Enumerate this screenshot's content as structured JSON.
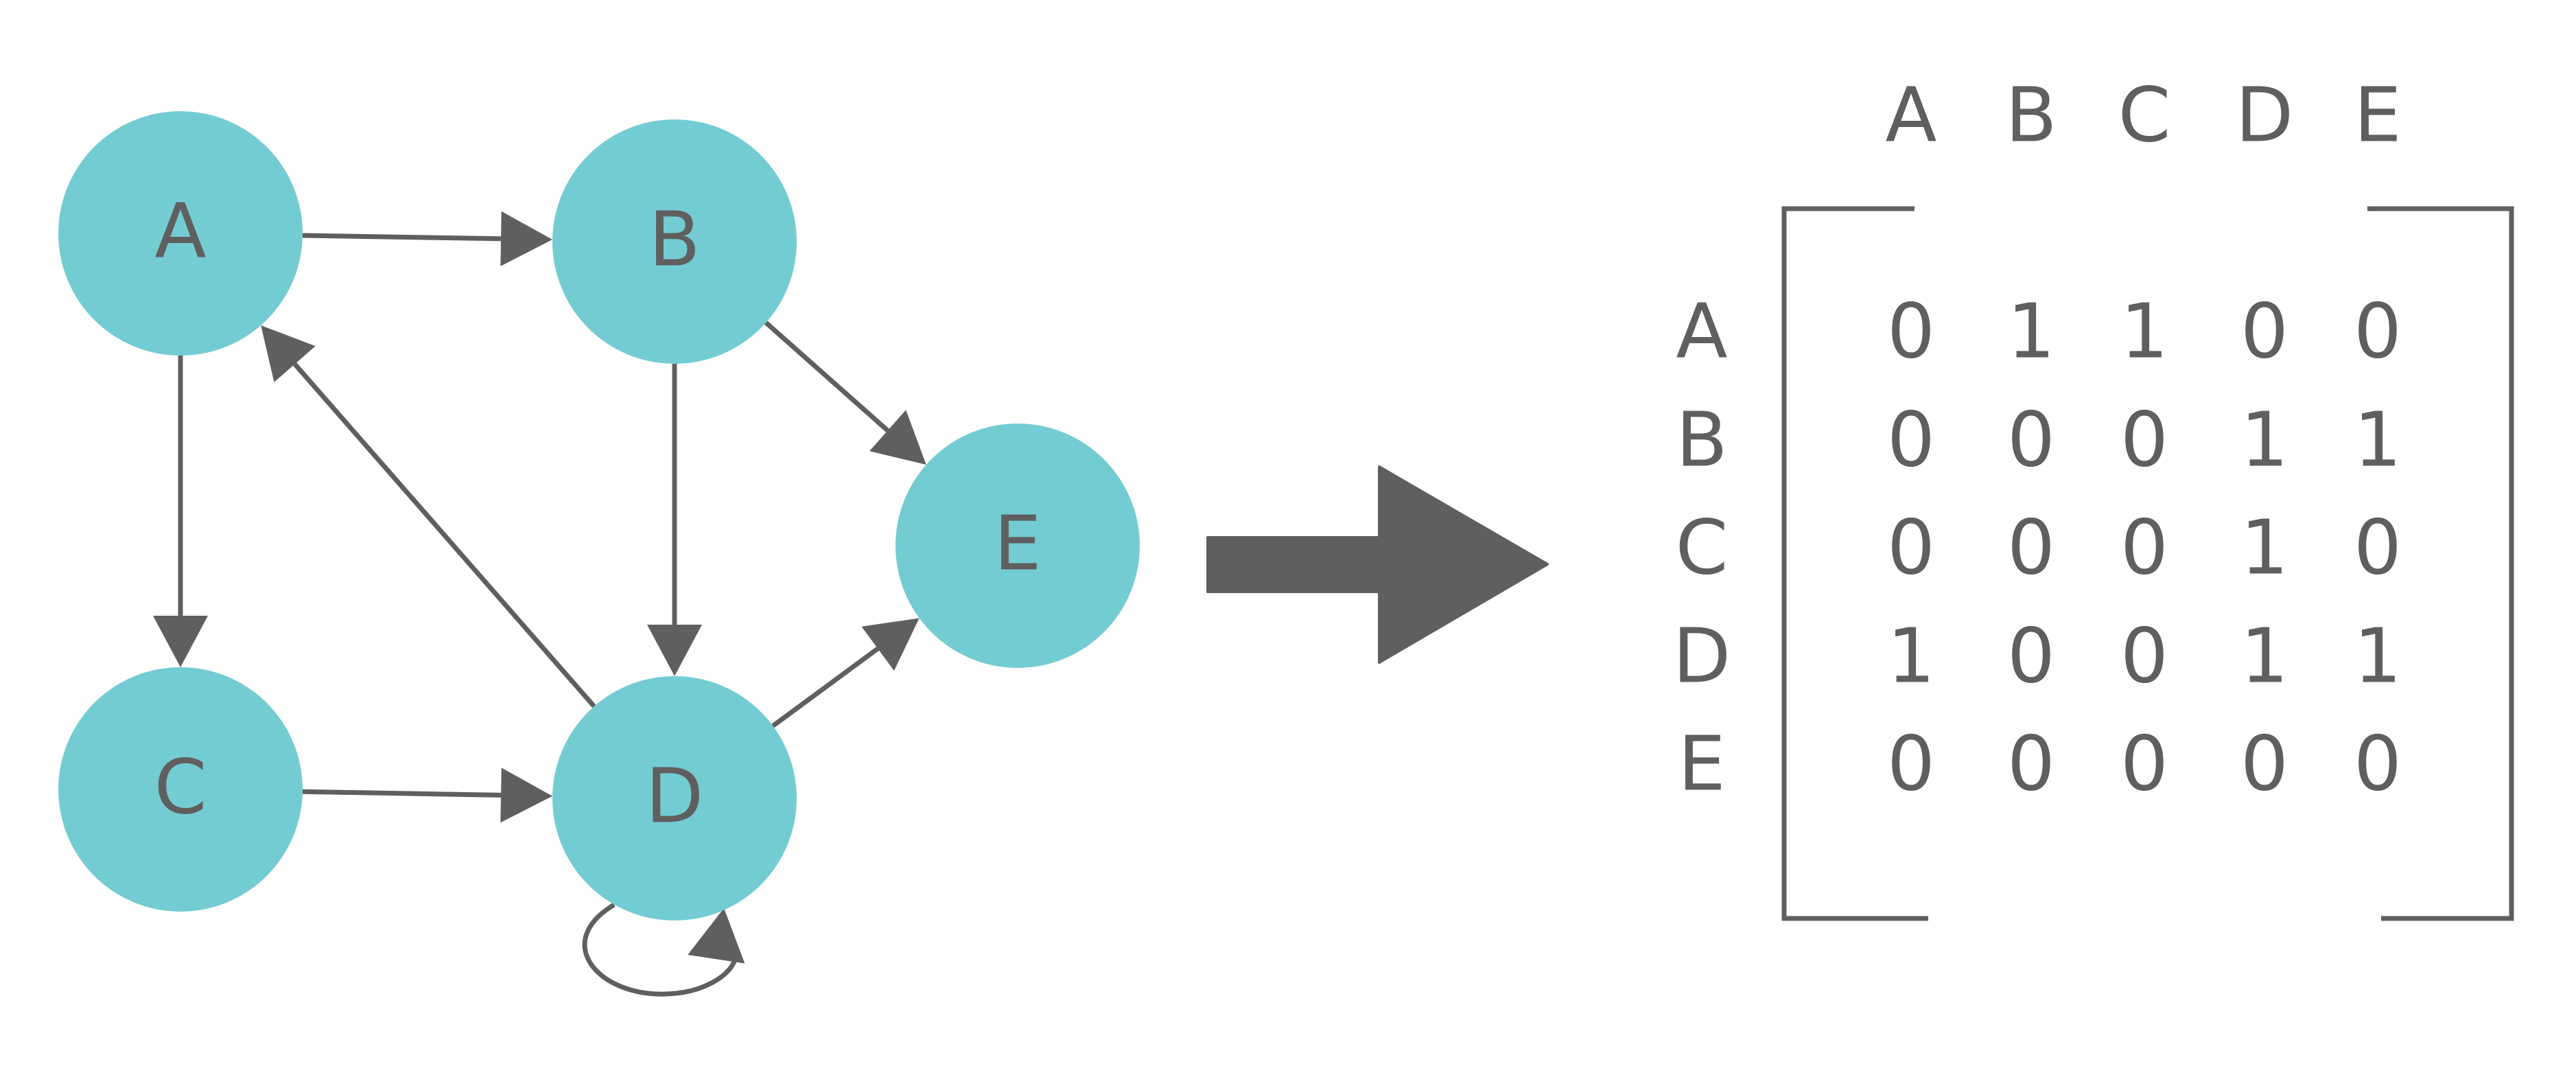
{
  "colors": {
    "node_fill": "#74CCD3",
    "ink": "#5F5F5F",
    "background": "#FFFFFF"
  },
  "graph": {
    "nodes": [
      {
        "id": "A",
        "label": "A"
      },
      {
        "id": "B",
        "label": "B"
      },
      {
        "id": "C",
        "label": "C"
      },
      {
        "id": "D",
        "label": "D"
      },
      {
        "id": "E",
        "label": "E"
      }
    ],
    "edges": [
      {
        "from": "A",
        "to": "B"
      },
      {
        "from": "A",
        "to": "C"
      },
      {
        "from": "B",
        "to": "D"
      },
      {
        "from": "B",
        "to": "E"
      },
      {
        "from": "C",
        "to": "D"
      },
      {
        "from": "D",
        "to": "A"
      },
      {
        "from": "D",
        "to": "D"
      },
      {
        "from": "D",
        "to": "E"
      }
    ]
  },
  "arrow_icon": "right-arrow-icon",
  "matrix": {
    "column_headers": [
      "A",
      "B",
      "C",
      "D",
      "E"
    ],
    "row_headers": [
      "A",
      "B",
      "C",
      "D",
      "E"
    ],
    "rows": [
      [
        "0",
        "1",
        "1",
        "0",
        "0"
      ],
      [
        "0",
        "0",
        "0",
        "1",
        "1"
      ],
      [
        "0",
        "0",
        "0",
        "1",
        "0"
      ],
      [
        "1",
        "0",
        "0",
        "1",
        "1"
      ],
      [
        "0",
        "0",
        "0",
        "0",
        "0"
      ]
    ]
  }
}
